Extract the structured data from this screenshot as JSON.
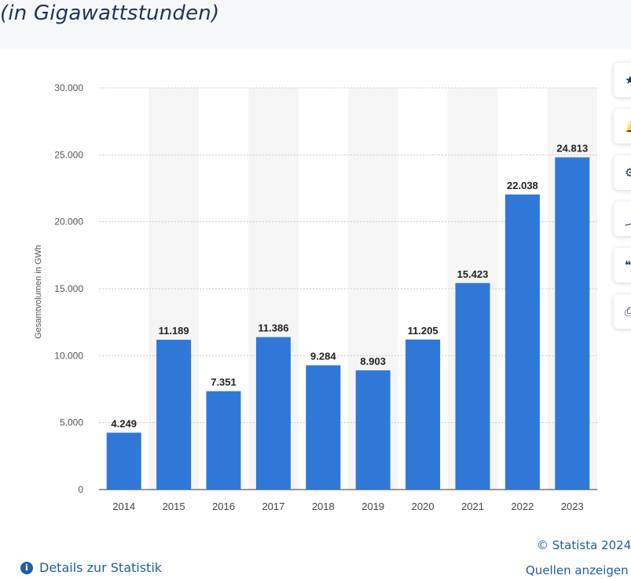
{
  "header": {
    "subtitle": "(in Gigawattstunden)"
  },
  "toolbar": {
    "icons": [
      "star-icon",
      "bell-icon",
      "gear-icon",
      "share-icon",
      "quote-icon",
      "print-icon"
    ]
  },
  "footer": {
    "details_label": "Details zur Statistik",
    "copyright": "© Statista 2024",
    "sources_label": "Quellen anzeigen"
  },
  "colors": {
    "bar": "#2f78d8",
    "accent_text": "#1f5fa6",
    "band": "#f5f5f5"
  },
  "chart_data": {
    "type": "bar",
    "categories": [
      "2014",
      "2015",
      "2016",
      "2017",
      "2018",
      "2019",
      "2020",
      "2021",
      "2022",
      "2023"
    ],
    "values": [
      4249,
      11189,
      7351,
      11386,
      9284,
      8903,
      11205,
      15423,
      22038,
      24813
    ],
    "value_labels": [
      "4.249",
      "11.189",
      "7.351",
      "11.386",
      "9.284",
      "8.903",
      "11.205",
      "15.423",
      "22.038",
      "24.813"
    ],
    "ylabel": "Gesamtvolumen in GWh",
    "ylim": [
      0,
      30000
    ],
    "yticks": [
      0,
      5000,
      10000,
      15000,
      20000,
      25000,
      30000
    ],
    "ytick_labels": [
      "0",
      "5.000",
      "10.000",
      "15.000",
      "20.000",
      "25.000",
      "30.000"
    ],
    "grid": true
  }
}
